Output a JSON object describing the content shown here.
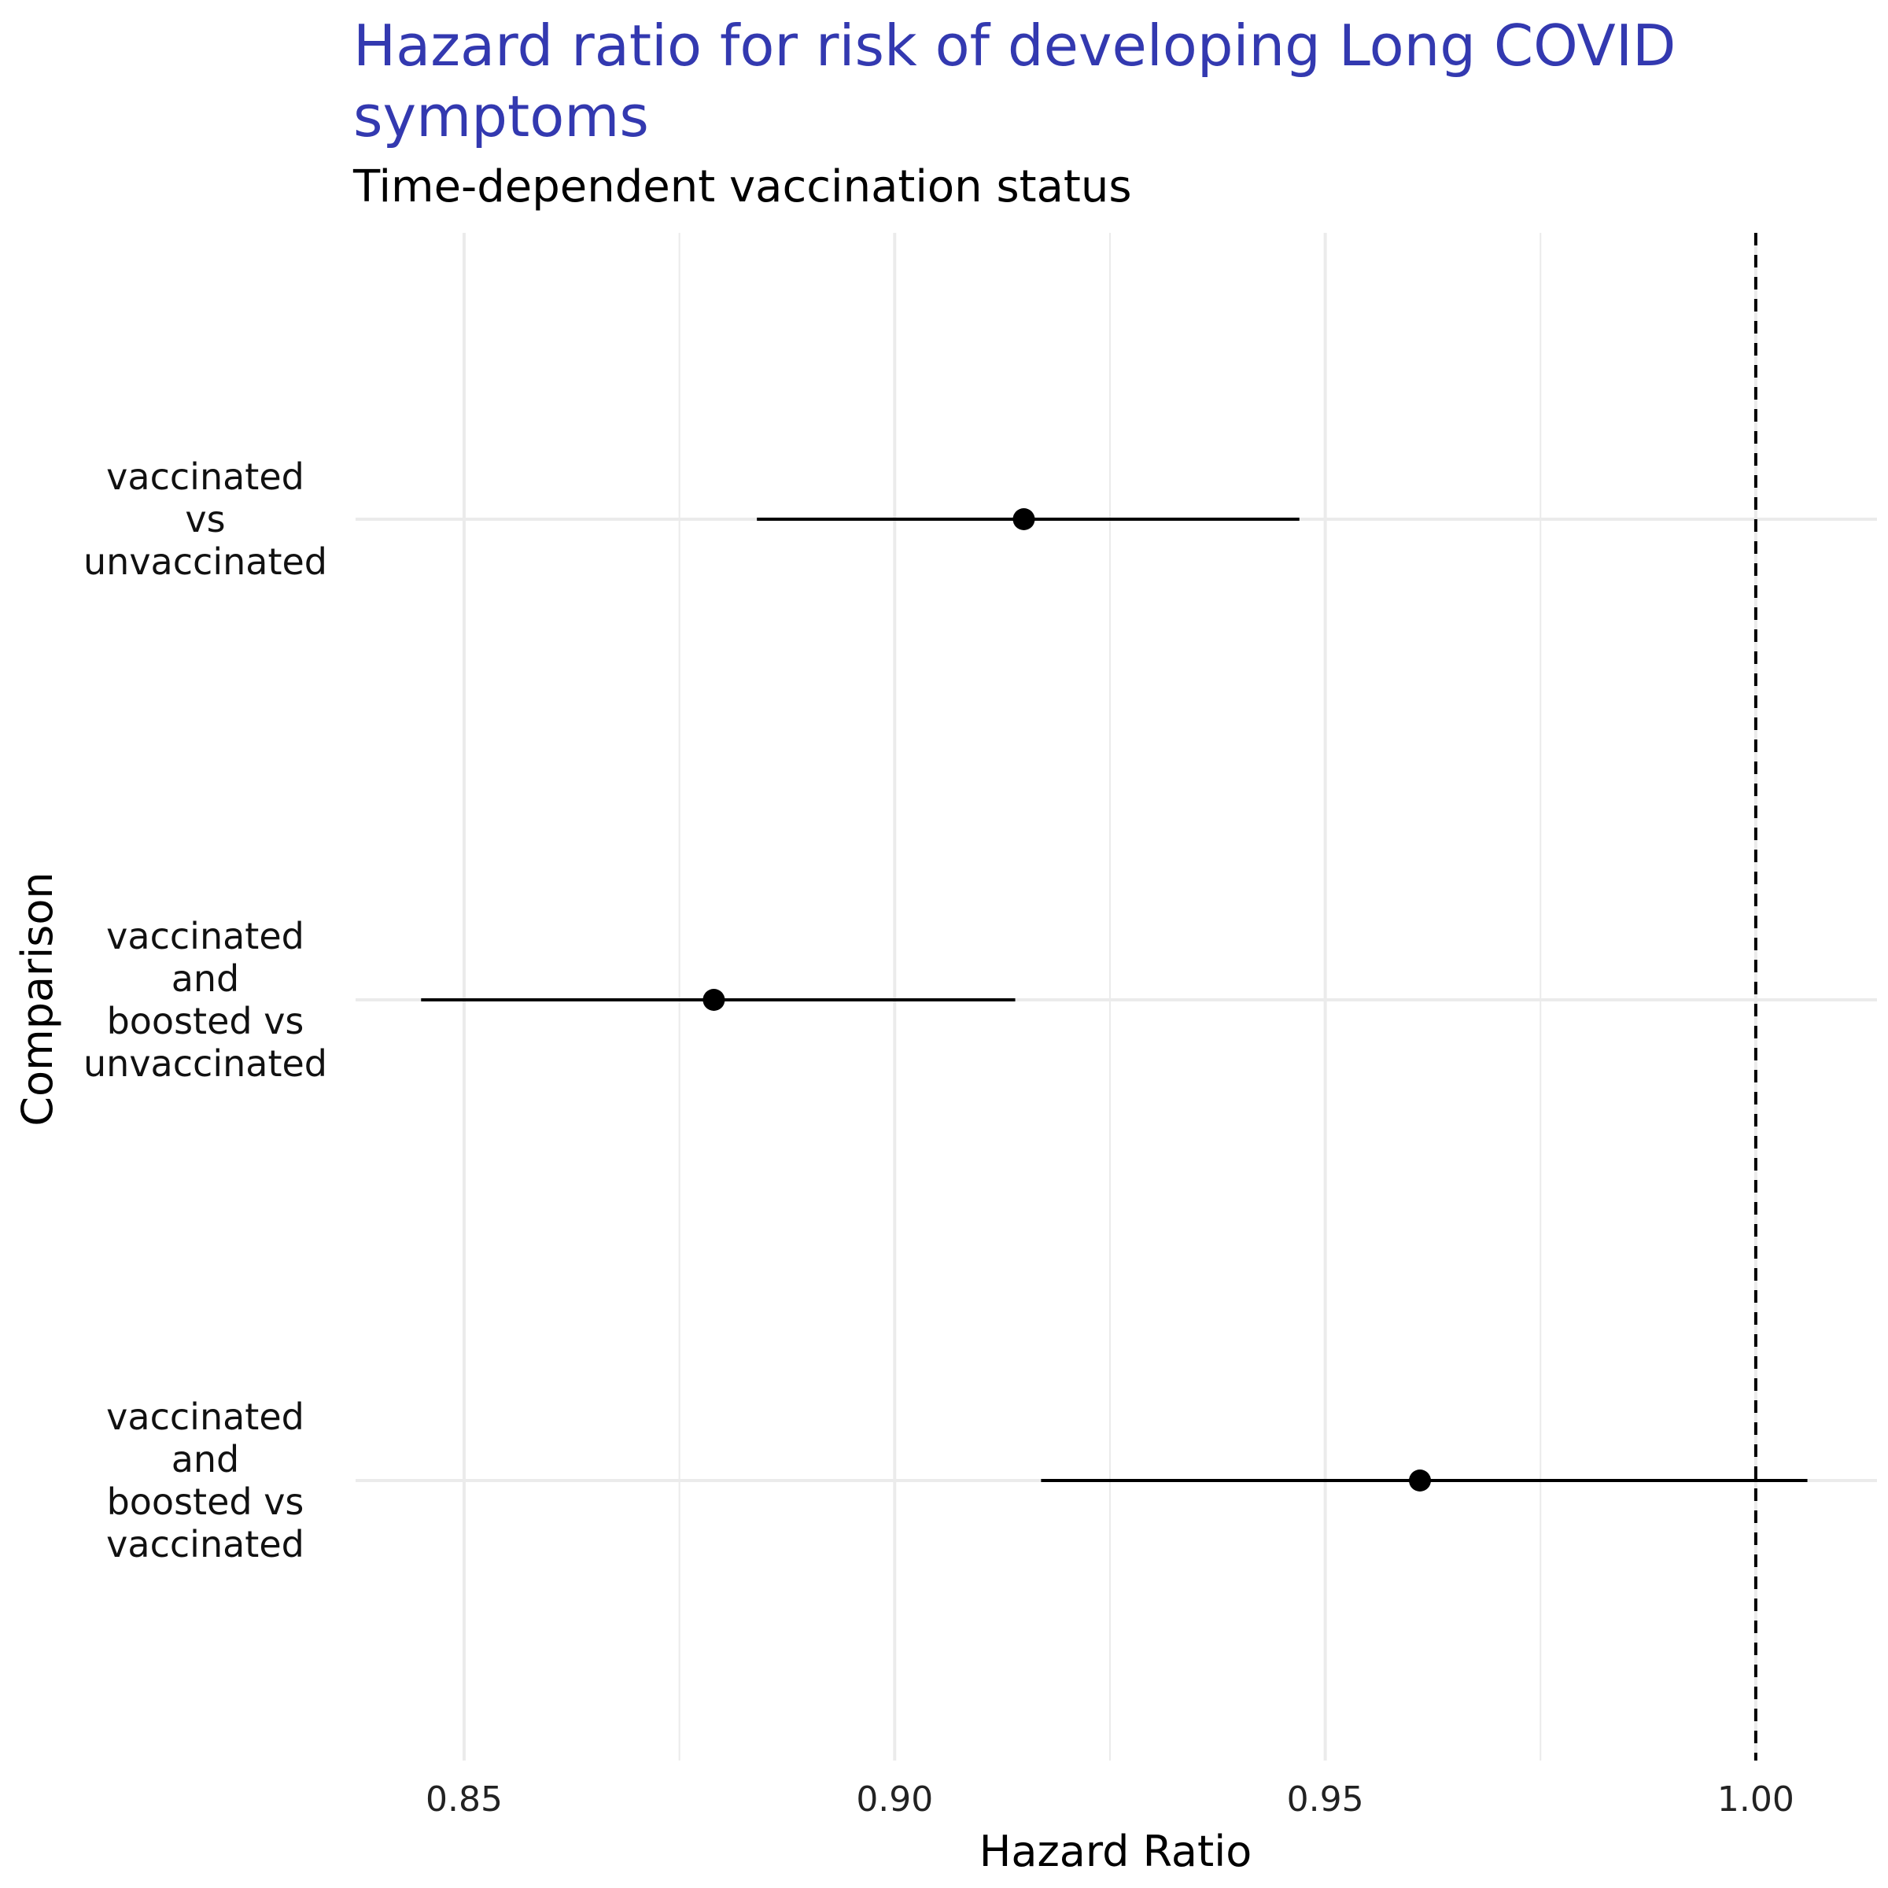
{
  "chart_data": {
    "type": "forest",
    "title_lines": [
      "Hazard ratio for risk of developing Long COVID",
      "symptoms"
    ],
    "subtitle": "Time-dependent vaccination status",
    "xlabel": "Hazard Ratio",
    "ylabel": "Comparison",
    "xlim": [
      0.838,
      1.014
    ],
    "x_ticks": [
      "0.85",
      "0.90",
      "0.95",
      "1.00"
    ],
    "x_tick_values": [
      0.85,
      0.9,
      0.95,
      1.0
    ],
    "minor_gridlines": [
      0.875,
      0.925,
      0.975
    ],
    "reference_line": 1.0,
    "grid": true,
    "series": [
      {
        "label_lines": [
          "vaccinated",
          "vs",
          "unvaccinated"
        ],
        "estimate": 0.915,
        "lower": 0.884,
        "upper": 0.947
      },
      {
        "label_lines": [
          "vaccinated",
          "and",
          "boosted vs",
          "unvaccinated"
        ],
        "estimate": 0.879,
        "lower": 0.845,
        "upper": 0.914
      },
      {
        "label_lines": [
          "vaccinated",
          "and",
          "boosted vs",
          "vaccinated"
        ],
        "estimate": 0.961,
        "lower": 0.917,
        "upper": 1.006
      }
    ],
    "colors": {
      "title": "#3339B0",
      "grid": "#EBEBEB",
      "mark": "#000000"
    }
  }
}
